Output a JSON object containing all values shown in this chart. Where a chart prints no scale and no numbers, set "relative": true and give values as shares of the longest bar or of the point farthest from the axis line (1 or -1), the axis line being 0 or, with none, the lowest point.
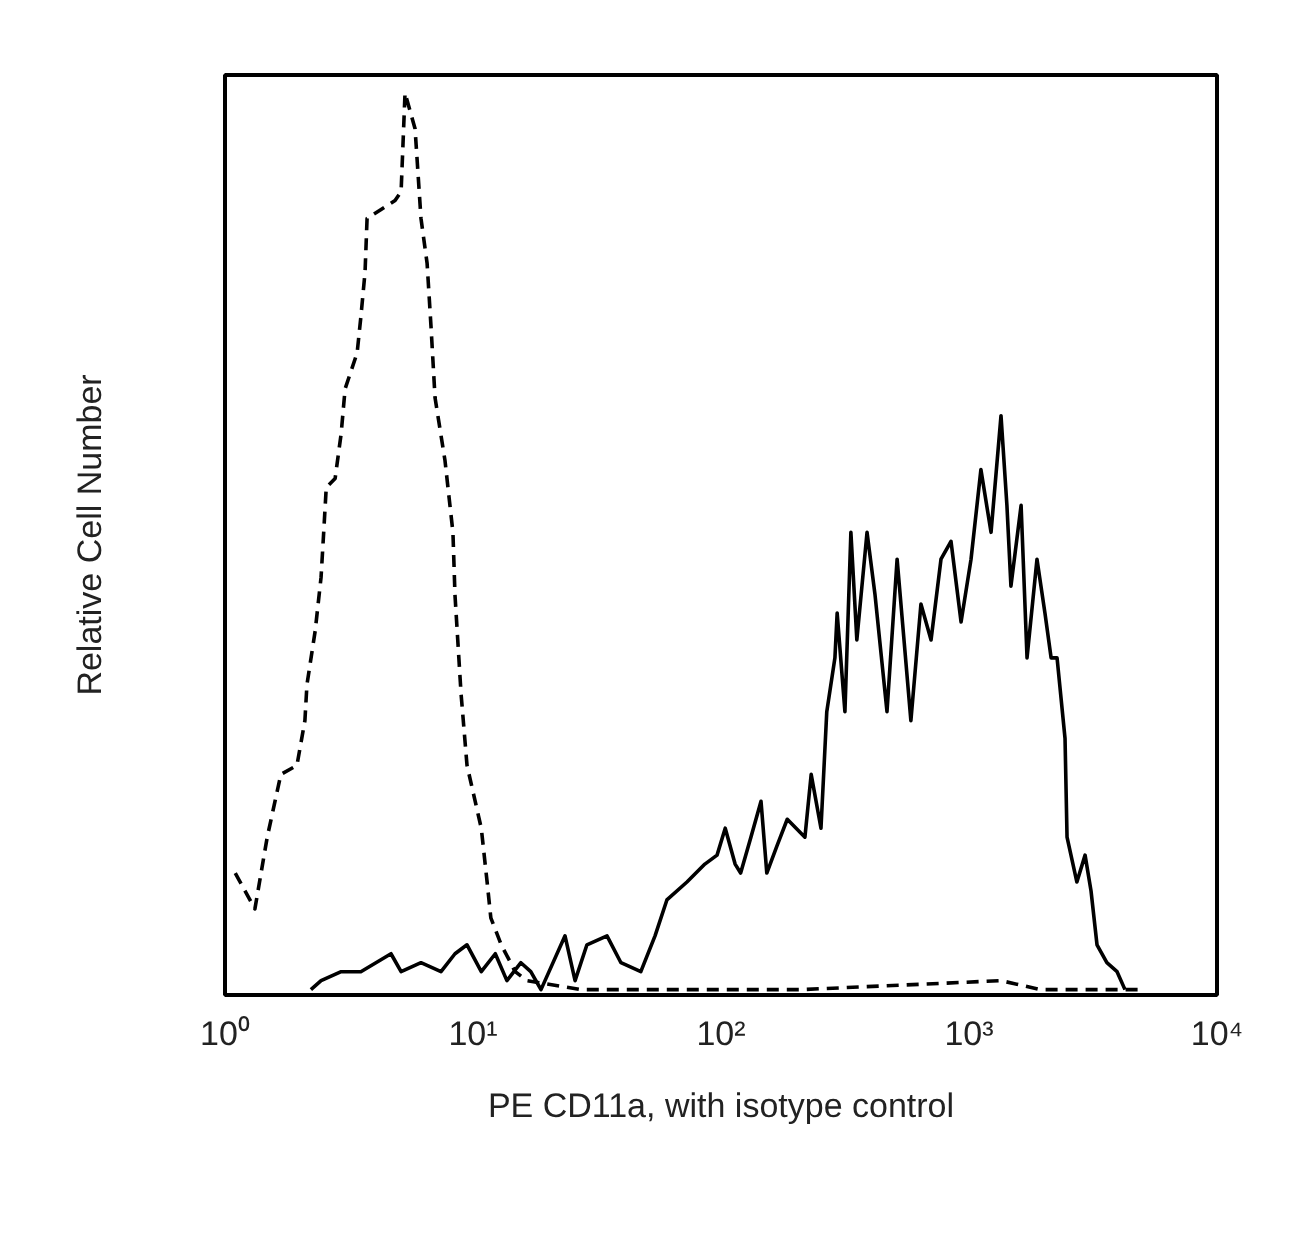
{
  "chart_data": {
    "type": "line",
    "relative": true,
    "log": "x",
    "grid": false,
    "tick_labels": "x",
    "xlabel": "PE CD11a, with isotype control",
    "ylabel": "Relative Cell Number",
    "xlim": [
      1,
      10000
    ],
    "xticks": [
      {
        "value": 1,
        "label": "10⁰"
      },
      {
        "value": 10,
        "label": "10¹"
      },
      {
        "value": 100,
        "label": "10²"
      },
      {
        "value": 1000,
        "label": "10³"
      },
      {
        "value": 10000,
        "label": "10⁴"
      }
    ],
    "series": [
      {
        "color": "#000000",
        "line_style": "dashed",
        "x": [
          1.1,
          1.32,
          1.48,
          1.68,
          1.95,
          2.1,
          2.14,
          2.31,
          2.44,
          2.5,
          2.56,
          2.78,
          2.94,
          3.05,
          3.41,
          3.53,
          3.67,
          3.74,
          4.26,
          4.85,
          5.13,
          5.32,
          5.84,
          6.17,
          6.53,
          6.77,
          7.03,
          7.71,
          8.3,
          8.46,
          8.95,
          9.46,
          10.8,
          11.4,
          11.8,
          13.0,
          14.8,
          16.5,
          27.3,
          210,
          1346,
          1950,
          5000
        ],
        "values": [
          0.13,
          0.09,
          0.17,
          0.24,
          0.25,
          0.3,
          0.34,
          0.4,
          0.46,
          0.51,
          0.56,
          0.57,
          0.62,
          0.67,
          0.71,
          0.75,
          0.8,
          0.86,
          0.87,
          0.88,
          0.89,
          1.0,
          0.96,
          0.86,
          0.81,
          0.74,
          0.66,
          0.59,
          0.51,
          0.44,
          0.33,
          0.25,
          0.18,
          0.12,
          0.08,
          0.05,
          0.02,
          0.01,
          0,
          0,
          0.01,
          0,
          0
        ]
      },
      {
        "color": "#000000",
        "line_style": "solid",
        "x": [
          2.22,
          2.44,
          2.94,
          3.53,
          4.67,
          5.13,
          6.17,
          7.43,
          8.46,
          9.46,
          10.8,
          12.3,
          13.7,
          15.6,
          17.1,
          18.8,
          23.5,
          25.8,
          28.8,
          34.7,
          39.5,
          47.5,
          54.2,
          60.5,
          72.9,
          86.1,
          96.4,
          104,
          114,
          120,
          132,
          145,
          153,
          168,
          185,
          218,
          231,
          253,
          267,
          288,
          294,
          316,
          334,
          353,
          388,
          418,
          467,
          513,
          583,
          640,
          703,
          771,
          846,
          929,
          1019,
          1117,
          1227,
          1346,
          1422,
          1476,
          1622,
          1714,
          1880,
          2024,
          2143,
          2265,
          2439,
          2485,
          2723,
          2938,
          3105,
          3282,
          3597,
          3954,
          4256
        ],
        "values": [
          0,
          0.01,
          0.02,
          0.02,
          0.04,
          0.02,
          0.03,
          0.02,
          0.04,
          0.05,
          0.02,
          0.04,
          0.01,
          0.03,
          0.02,
          0,
          0.06,
          0.01,
          0.05,
          0.06,
          0.03,
          0.02,
          0.06,
          0.1,
          0.12,
          0.14,
          0.15,
          0.18,
          0.14,
          0.13,
          0.17,
          0.21,
          0.13,
          0.16,
          0.19,
          0.17,
          0.24,
          0.18,
          0.31,
          0.37,
          0.42,
          0.31,
          0.51,
          0.39,
          0.51,
          0.44,
          0.31,
          0.48,
          0.3,
          0.43,
          0.39,
          0.48,
          0.5,
          0.41,
          0.48,
          0.58,
          0.51,
          0.64,
          0.54,
          0.45,
          0.54,
          0.37,
          0.48,
          0.42,
          0.37,
          0.37,
          0.28,
          0.17,
          0.12,
          0.15,
          0.11,
          0.05,
          0.03,
          0.02,
          0
        ]
      }
    ]
  }
}
